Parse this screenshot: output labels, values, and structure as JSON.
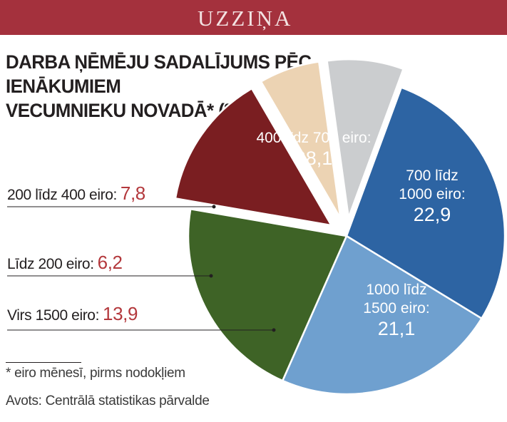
{
  "banner": {
    "text": "UZZIŅA"
  },
  "title": {
    "line1": "DARBA ŅĒMĒJU SADALĪJUMS PĒC IENĀKUMIEM",
    "line2": "VECUMNIEKU NOVADĀ* (%)"
  },
  "chart_data": {
    "type": "pie",
    "unit": "%",
    "slices": [
      {
        "label": "700 līdz 1000 eiro:",
        "value": 22.9,
        "display": "22,9",
        "color": "#6fa0cf",
        "label_lines": [
          "700 līdz",
          "1000 eiro:"
        ]
      },
      {
        "label": "1000 līdz 1500 eiro:",
        "value": 21.1,
        "display": "21,1",
        "color": "#3e6326",
        "label_lines": [
          "1000 līdz",
          "1500 eiro:"
        ]
      },
      {
        "label": "Virs 1500 eiro:",
        "value": 13.9,
        "display": "13,9",
        "color": "#7a1e21"
      },
      {
        "label": "Līdz 200 eiro:",
        "value": 6.2,
        "display": "6,2",
        "color": "#ecd3b3"
      },
      {
        "label": "200 līdz 400 eiro:",
        "value": 7.8,
        "display": "7,8",
        "color": "#cbcdcf"
      },
      {
        "label": "400 līdz 700 eiro:",
        "value": 28.1,
        "display": "28,1",
        "color": "#2d64a3",
        "label_lines": [
          "400 līdz 700 eiro:"
        ]
      }
    ]
  },
  "footnote": "* eiro mēnesī, pirms nodokļiem",
  "source": "Avots: Centrālā statistikas pārvalde"
}
